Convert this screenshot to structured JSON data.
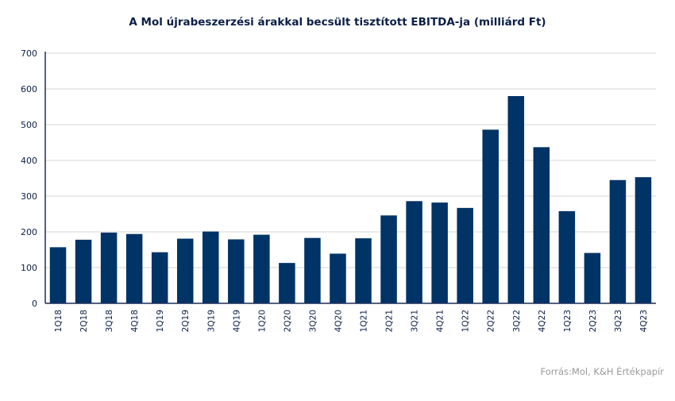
{
  "chart_data": {
    "type": "bar",
    "title": "A Mol újrabeszerzési árakkal becsült tisztított EBITDA-ja (milliárd Ft)",
    "categories": [
      "1Q18",
      "2Q18",
      "3Q18",
      "4Q18",
      "1Q19",
      "2Q19",
      "3Q19",
      "4Q19",
      "1Q20",
      "2Q20",
      "3Q20",
      "4Q20",
      "1Q21",
      "2Q21",
      "3Q21",
      "4Q21",
      "1Q22",
      "2Q22",
      "3Q22",
      "4Q22",
      "1Q23",
      "2Q23",
      "3Q23",
      "4Q23"
    ],
    "values": [
      157,
      178,
      198,
      194,
      143,
      181,
      201,
      179,
      192,
      113,
      183,
      139,
      182,
      246,
      286,
      282,
      267,
      486,
      580,
      437,
      258,
      141,
      345,
      353
    ],
    "y_ticks": [
      "0",
      "100",
      "200",
      "300",
      "400",
      "500",
      "600",
      "700"
    ],
    "ylim": [
      0,
      700
    ],
    "xlabel": "",
    "ylabel": "",
    "grid": true,
    "bar_color": "#003366",
    "grid_color": "#d4d4d4",
    "axis_color": "#1f2d5a"
  },
  "source": "Forrás:Mol, K&H Értékpapír"
}
